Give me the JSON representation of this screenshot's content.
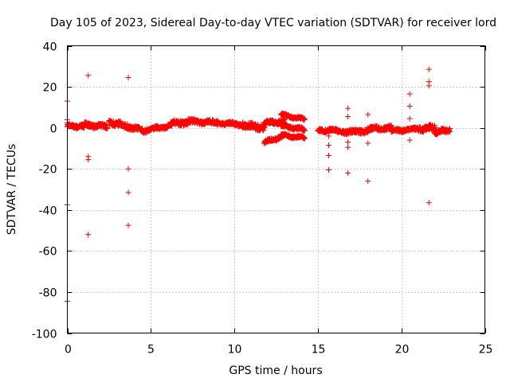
{
  "chart_data": {
    "type": "scatter",
    "title": "Day 105 of 2023, Sidereal Day-to-day VTEC variation (SDTVAR) for receiver lord",
    "xlabel": "GPS time / hours",
    "ylabel": "SDTVAR / TECUs",
    "xlim": [
      0,
      25
    ],
    "ylim": [
      -100,
      40
    ],
    "xticks": [
      "0",
      "5",
      "10",
      "15",
      "20",
      "25"
    ],
    "yticks": [
      "-100",
      "-80",
      "-60",
      "-40",
      "-20",
      "0",
      "20",
      "40"
    ],
    "grid": true,
    "marker": "+",
    "color": "#ff0000",
    "segments": [
      {
        "x0": 0.0,
        "x1": 1.0,
        "y0": 1.0,
        "y1": 0.5,
        "spread": 1.5
      },
      {
        "x0": 1.0,
        "x1": 2.4,
        "y0": 1.5,
        "y1": 0.5,
        "spread": 2.0
      },
      {
        "x0": 2.5,
        "x1": 3.6,
        "y0": 2.5,
        "y1": 1.0,
        "spread": 2.5
      },
      {
        "x0": 3.6,
        "x1": 4.8,
        "y0": 0.5,
        "y1": -1.5,
        "spread": 2.0
      },
      {
        "x0": 4.8,
        "x1": 6.2,
        "y0": -1.0,
        "y1": 1.0,
        "spread": 1.5
      },
      {
        "x0": 6.2,
        "x1": 7.5,
        "y0": 2.0,
        "y1": 3.0,
        "spread": 2.5
      },
      {
        "x0": 7.5,
        "x1": 9.0,
        "y0": 3.0,
        "y1": 2.5,
        "spread": 2.0
      },
      {
        "x0": 9.0,
        "x1": 10.5,
        "y0": 2.5,
        "y1": 1.5,
        "spread": 1.5
      },
      {
        "x0": 10.5,
        "x1": 11.8,
        "y0": 1.5,
        "y1": 0.0,
        "spread": 3.0
      },
      {
        "x0": 11.8,
        "x1": 13.0,
        "y0": 2.5,
        "y1": 3.0,
        "spread": 2.0
      },
      {
        "x0": 11.8,
        "x1": 13.0,
        "y0": -7.0,
        "y1": -4.0,
        "spread": 1.5
      },
      {
        "x0": 12.8,
        "x1": 14.2,
        "y0": 6.5,
        "y1": 4.0,
        "spread": 1.0
      },
      {
        "x0": 12.8,
        "x1": 14.2,
        "y0": 1.0,
        "y1": -1.0,
        "spread": 1.5
      },
      {
        "x0": 12.8,
        "x1": 14.2,
        "y0": -3.5,
        "y1": -5.0,
        "spread": 1.0
      },
      {
        "x0": 15.0,
        "x1": 16.5,
        "y0": -1.0,
        "y1": -1.5,
        "spread": 1.5
      },
      {
        "x0": 16.5,
        "x1": 18.0,
        "y0": -2.0,
        "y1": -1.5,
        "spread": 2.0
      },
      {
        "x0": 18.0,
        "x1": 19.4,
        "y0": -0.5,
        "y1": 0.0,
        "spread": 2.0
      },
      {
        "x0": 19.4,
        "x1": 21.0,
        "y0": -1.5,
        "y1": -0.5,
        "spread": 1.5
      },
      {
        "x0": 21.0,
        "x1": 22.0,
        "y0": -1.0,
        "y1": 0.5,
        "spread": 2.5
      },
      {
        "x0": 22.0,
        "x1": 22.9,
        "y0": -2.0,
        "y1": -1.0,
        "spread": 2.0
      }
    ],
    "outliers": [
      [
        0.0,
        13.0
      ],
      [
        0.0,
        4.0
      ],
      [
        0.0,
        2.5
      ],
      [
        0.0,
        -37.5
      ],
      [
        0.0,
        -84.5
      ],
      [
        1.25,
        25.5
      ],
      [
        1.25,
        -14.0
      ],
      [
        1.25,
        -15.5
      ],
      [
        1.25,
        -52.0
      ],
      [
        3.65,
        24.5
      ],
      [
        3.65,
        -20.0
      ],
      [
        3.65,
        -31.5
      ],
      [
        3.65,
        -47.5
      ],
      [
        15.65,
        -4.0
      ],
      [
        15.65,
        -8.5
      ],
      [
        15.65,
        -13.5
      ],
      [
        15.65,
        -20.5
      ],
      [
        16.8,
        9.5
      ],
      [
        16.8,
        5.5
      ],
      [
        16.8,
        -7.0
      ],
      [
        16.8,
        -9.5
      ],
      [
        16.8,
        -22.0
      ],
      [
        18.0,
        6.5
      ],
      [
        18.0,
        -7.5
      ],
      [
        18.0,
        -26.0
      ],
      [
        20.5,
        16.5
      ],
      [
        20.5,
        10.5
      ],
      [
        20.5,
        4.5
      ],
      [
        20.5,
        -6.0
      ],
      [
        21.65,
        28.5
      ],
      [
        21.65,
        22.5
      ],
      [
        21.65,
        20.5
      ],
      [
        21.65,
        1.5
      ],
      [
        21.65,
        -36.5
      ]
    ]
  }
}
